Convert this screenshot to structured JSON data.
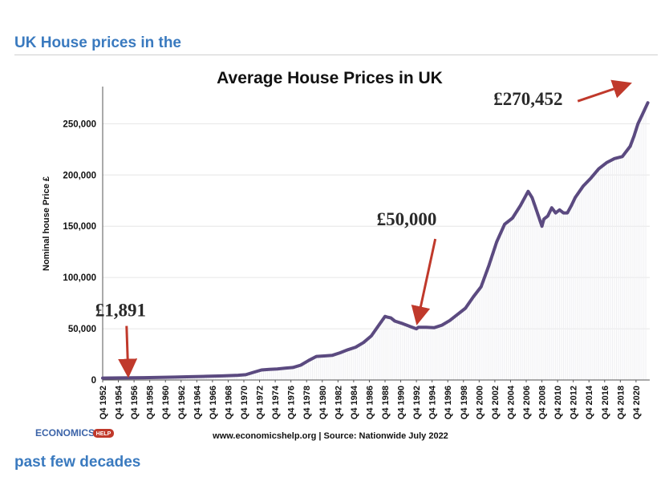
{
  "page": {
    "heading_top": "UK House prices in the",
    "heading_bottom": "past few decades"
  },
  "colors": {
    "heading": "#3a7abf",
    "line": "#5b4a80",
    "arrow": "#c0392b",
    "fill": "#efeff2",
    "logo": "#3b63a8",
    "logo_badge": "#c0392b"
  },
  "logo": {
    "main": "ECONOMICS",
    "badge": "HELP"
  },
  "source_text": "www.economicshelp.org | Source: Nationwide July 2022",
  "chart_data": {
    "type": "line",
    "title": "Average House Prices in UK",
    "xlabel": "",
    "ylabel": "Nominal house Price £",
    "ylim": [
      0,
      280000
    ],
    "yticks": [
      0,
      50000,
      100000,
      150000,
      200000,
      250000
    ],
    "ytick_labels": [
      "0",
      "50,000",
      "100,000",
      "150,000",
      "200,000",
      "250,000"
    ],
    "xlim": [
      1952.75,
      2022.5
    ],
    "xticks": [
      1952.75,
      1954.75,
      1956.75,
      1958.75,
      1960.75,
      1962.75,
      1964.75,
      1966.75,
      1968.75,
      1970.75,
      1972.75,
      1974.75,
      1976.75,
      1978.75,
      1980.75,
      1982.75,
      1984.75,
      1986.75,
      1988.75,
      1990.75,
      1992.75,
      1994.75,
      1996.75,
      1998.75,
      2000.75,
      2002.75,
      2004.75,
      2006.75,
      2008.75,
      2010.75,
      2012.75,
      2014.75,
      2016.75,
      2018.75,
      2020.75
    ],
    "xtick_labels": [
      "Q4 1952",
      "Q4 1954",
      "Q4 1956",
      "Q4 1958",
      "Q4 1960",
      "Q4 1962",
      "Q4 1964",
      "Q4 1966",
      "Q4 1968",
      "Q4 1970",
      "Q4 1972",
      "Q4 1974",
      "Q4 1976",
      "Q4 1978",
      "Q4 1980",
      "Q4 1982",
      "Q4 1984",
      "Q4 1986",
      "Q4 1988",
      "Q4 1990",
      "Q4 1992",
      "Q4 1994",
      "Q4 1996",
      "Q4 1998",
      "Q4 2000",
      "Q4 2002",
      "Q4 2004",
      "Q4 2006",
      "Q4 2008",
      "Q4 2010",
      "Q4 2012",
      "Q4 2014",
      "Q4 2016",
      "Q4 2018",
      "Q4 2020"
    ],
    "grid": true,
    "series": [
      {
        "x": [
          1952.75,
          1955,
          1958,
          1960,
          1962,
          1964,
          1966,
          1968,
          1970,
          1971,
          1972,
          1973,
          1974,
          1975,
          1976,
          1977,
          1978,
          1979,
          1980,
          1981,
          1982,
          1983,
          1984,
          1985,
          1986,
          1987,
          1988,
          1988.75,
          1989,
          1989.5,
          1990,
          1991,
          1992,
          1992.75,
          1993,
          1994,
          1995,
          1996,
          1997,
          1998,
          1999,
          2000,
          2001,
          2002,
          2003,
          2004,
          2005,
          2006,
          2007,
          2007.5,
          2008,
          2008.75,
          2009,
          2009.5,
          2010,
          2010.5,
          2011,
          2011.5,
          2012,
          2012.5,
          2013,
          2014,
          2015,
          2016,
          2017,
          2018,
          2019,
          2020,
          2020.5,
          2021,
          2021.5,
          2022.25
        ],
        "values": [
          1891,
          2000,
          2300,
          2500,
          2800,
          3200,
          3600,
          4000,
          4600,
          5200,
          7500,
          9800,
          10300,
          10800,
          11600,
          12200,
          14500,
          19000,
          23000,
          23500,
          24000,
          26500,
          29500,
          32000,
          36500,
          43000,
          54000,
          62000,
          61500,
          60500,
          57500,
          55000,
          52000,
          50000,
          51500,
          51500,
          51000,
          53500,
          58000,
          64000,
          70000,
          81000,
          91000,
          112000,
          135000,
          152000,
          158000,
          170000,
          184000,
          178000,
          167000,
          150000,
          157000,
          160000,
          168000,
          163000,
          166000,
          163000,
          163000,
          170000,
          178000,
          189000,
          197000,
          206000,
          212000,
          216000,
          218000,
          228000,
          238000,
          250000,
          258000,
          270452
        ]
      }
    ],
    "annotations": [
      {
        "text": "£1,891",
        "x": 1956,
        "value": 1891
      },
      {
        "text": "£50,000",
        "x": 1992.5,
        "value": 50000
      },
      {
        "text": "£270,452",
        "x": 2021.5,
        "value": 270452
      }
    ]
  }
}
